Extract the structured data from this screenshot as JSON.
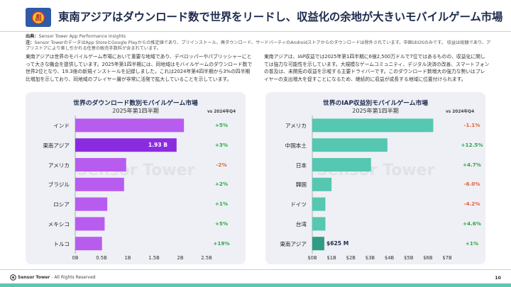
{
  "page": {
    "title": "東南アジアはダウンロード数で世界をリードし、収益化の余地が大きいモバイルゲーム市場",
    "source_label": "出典：",
    "source_text": "Sensor Tower App Performance Insights",
    "note_label": "注：",
    "note_text": "Sensor TowerのデータはApp StoreとGoogle Playからの推定値であり、プリインストール、再ダウンロード、サードパーティのAndroidストアからのダウンロードは除外されています。中国はiOSのみです。 収益は総額であり、アプリストアにより差し引かれる任意の販売手数料が含まれています。",
    "left_paragraph": "東南アジアは世界のモバイルゲーム市場において重要な地域であり、デベロッパーやパブリッシャーにとって大きな機会を提供しています。2025年第1四半期には、同地域はモバイルゲームのダウンロード数で世界2位となり、19.3億の新規インストールを記録しました。これは2024年第4四半期から3%の四半期比増加を示しており、同地域のプレイヤー層が非常に活発で拡大していることを示しています。",
    "right_paragraph": "東南アジアは、IAP収益では2025年第1四半期に6億2,500万ドルで7位ではあるものの、収益化に関しては強力な可能性を示しています。大規模なゲームコミュニティ、デジタル決済の改善、スマートフォンの普及は、未開拓の収益を示唆する主要ドライバーです。このダウンロード数増大の強力な勢いはプレイヤーの支出増大を促すことになるため、継続的に収益が成長する地域に位置付けられます。",
    "watermark": "Sensor Tower",
    "footer_brand": "Sensor Tower",
    "footer_rights": "- All Rights Reserved",
    "page_number": "10"
  },
  "chart_data": [
    {
      "type": "bar",
      "orientation": "horizontal",
      "title": "世界のダウンロード数別モバイルゲーム市場",
      "subtitle": "2025年第1四半期",
      "delta_header": "vs 2024年Q4",
      "categories": [
        "インド",
        "東南アジア",
        "アメリカ",
        "ブラジル",
        "ロシア",
        "メキシコ",
        "トルコ"
      ],
      "values": [
        2.07,
        1.93,
        0.97,
        0.93,
        0.61,
        0.56,
        0.51
      ],
      "unit": "B",
      "value_label": {
        "index": 1,
        "text": "1.93 B"
      },
      "deltas": [
        "+5%",
        "+3%",
        "-2%",
        "+2%",
        "+1%",
        "+5%",
        "+19%"
      ],
      "xlim": [
        0,
        2.5
      ],
      "xticks": [
        0,
        0.5,
        1,
        1.5,
        2,
        2.5
      ],
      "xtick_labels": [
        "0B",
        "0.5B",
        "1B",
        "1.5B",
        "2B",
        "2.5B"
      ],
      "bar_color": "#b85cf0",
      "highlight_index": 1,
      "highlight_color": "#8b2be0"
    },
    {
      "type": "bar",
      "orientation": "horizontal",
      "title": "世界のIAP収益別モバイルゲーム市場",
      "subtitle": "2025年第1四半期",
      "delta_header": "vs 2024年Q4",
      "categories": [
        "アメリカ",
        "中国本土",
        "日本",
        "韓国",
        "ドイツ",
        "台湾",
        "東南アジア"
      ],
      "values": [
        6.28,
        3.9,
        3.05,
        1.0,
        0.68,
        0.68,
        0.625
      ],
      "unit": "$B",
      "value_label": {
        "index": 6,
        "text": "$625 M"
      },
      "deltas": [
        "-1.1%",
        "+12.5%",
        "+4.7%",
        "-6.0%",
        "-4.2%",
        "+4.6%",
        "+1%"
      ],
      "xlim": [
        0,
        7
      ],
      "xticks": [
        0,
        1,
        2,
        3,
        4,
        5,
        6,
        7
      ],
      "xtick_labels": [
        "$0B",
        "$1B",
        "$2B",
        "$3B",
        "$4B",
        "$5B",
        "$6B",
        "$7B"
      ],
      "bar_color": "#56c7b0",
      "highlight_index": 6,
      "highlight_color": "#2f9d86"
    }
  ],
  "colors": {
    "positive": "#2aa84a",
    "negative": "#e0623c",
    "title": "#1d2b4d"
  }
}
